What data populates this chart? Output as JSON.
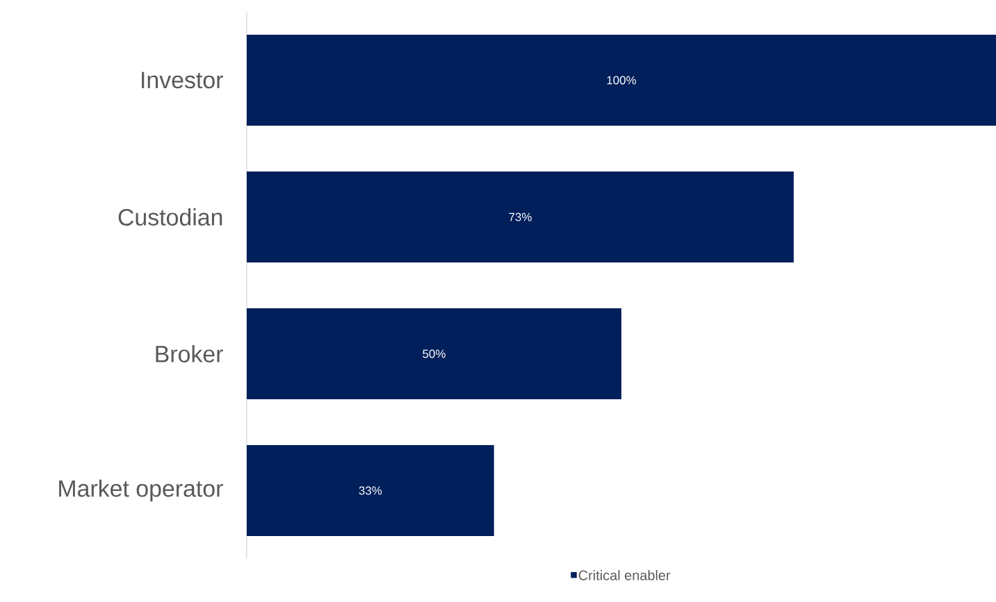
{
  "chart_data": {
    "type": "bar",
    "orientation": "horizontal",
    "categories": [
      "Investor",
      "Custodian",
      "Broker",
      "Market operator"
    ],
    "series": [
      {
        "name": "Critical enabler",
        "color": "#001f5b",
        "values": [
          100,
          73,
          50,
          33
        ],
        "value_labels": [
          "100%",
          "73%",
          "50%",
          "33%"
        ]
      }
    ],
    "xlim": [
      0,
      100
    ],
    "tick_labels": "y",
    "legend": "bottom"
  }
}
